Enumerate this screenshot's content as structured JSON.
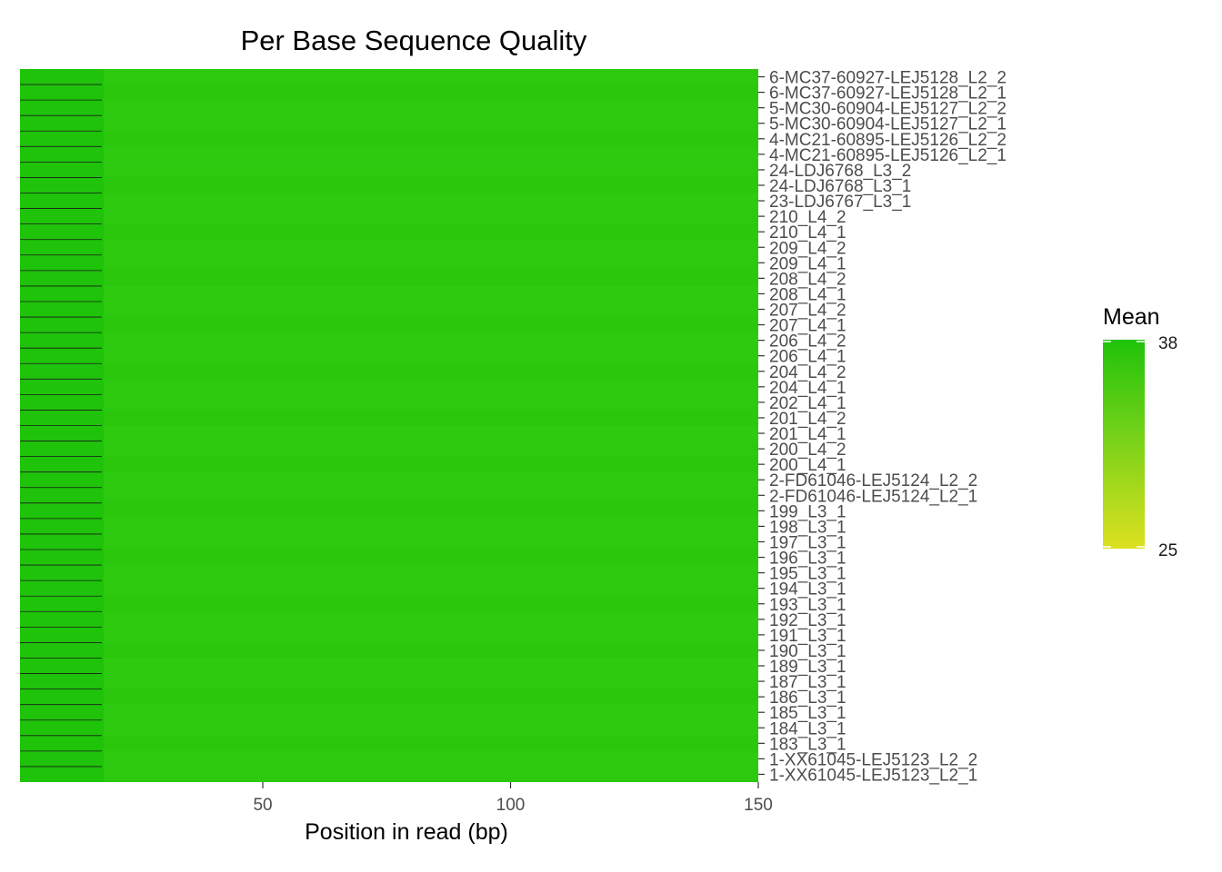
{
  "chart_data": {
    "type": "heatmap",
    "title": "Per Base Sequence Quality",
    "xlabel": "Position in read (bp)",
    "ylabel": "",
    "x_ticks": [
      50,
      100,
      150
    ],
    "xlim": [
      1,
      150
    ],
    "samples": [
      "6-MC37-60927-LEJ5128_L2_2",
      "6-MC37-60927-LEJ5128_L2_1",
      "5-MC30-60904-LEJ5127_L2_2",
      "5-MC30-60904-LEJ5127_L2_1",
      "4-MC21-60895-LEJ5126_L2_2",
      "4-MC21-60895-LEJ5126_L2_1",
      "24-LDJ6768_L3_2",
      "24-LDJ6768_L3_1",
      "23-LDJ6767_L3_1",
      "210_L4_2",
      "210_L4_1",
      "209_L4_2",
      "209_L4_1",
      "208_L4_2",
      "208_L4_1",
      "207_L4_2",
      "207_L4_1",
      "206_L4_2",
      "206_L4_1",
      "204_L4_2",
      "204_L4_1",
      "202_L4_1",
      "201_L4_2",
      "201_L4_1",
      "200_L4_2",
      "200_L4_1",
      "2-FD61046-LEJ5124_L2_2",
      "2-FD61046-LEJ5124_L2_1",
      "199_L3_1",
      "198_L3_1",
      "197_L3_1",
      "196_L3_1",
      "195_L3_1",
      "194_L3_1",
      "193_L3_1",
      "192_L3_1",
      "191_L3_1",
      "190_L3_1",
      "189_L3_1",
      "187_L3_1",
      "186_L3_1",
      "185_L3_1",
      "184_L3_1",
      "183_L3_1",
      "1-XX61045-LEJ5123_L2_2",
      "1-XX61045-LEJ5123_L2_1"
    ],
    "value_approx": "all cells approximately 36–38 (uniform green)",
    "legend": {
      "title": "Mean",
      "min": 25,
      "max": 38,
      "low_color": "#dde01f",
      "high_color": "#1fc30a",
      "placement": "right"
    },
    "grid": false
  },
  "colors": {
    "tile_main": "#2bc80e",
    "tile_left": "#1fc30a",
    "tick_color": "#333333"
  }
}
